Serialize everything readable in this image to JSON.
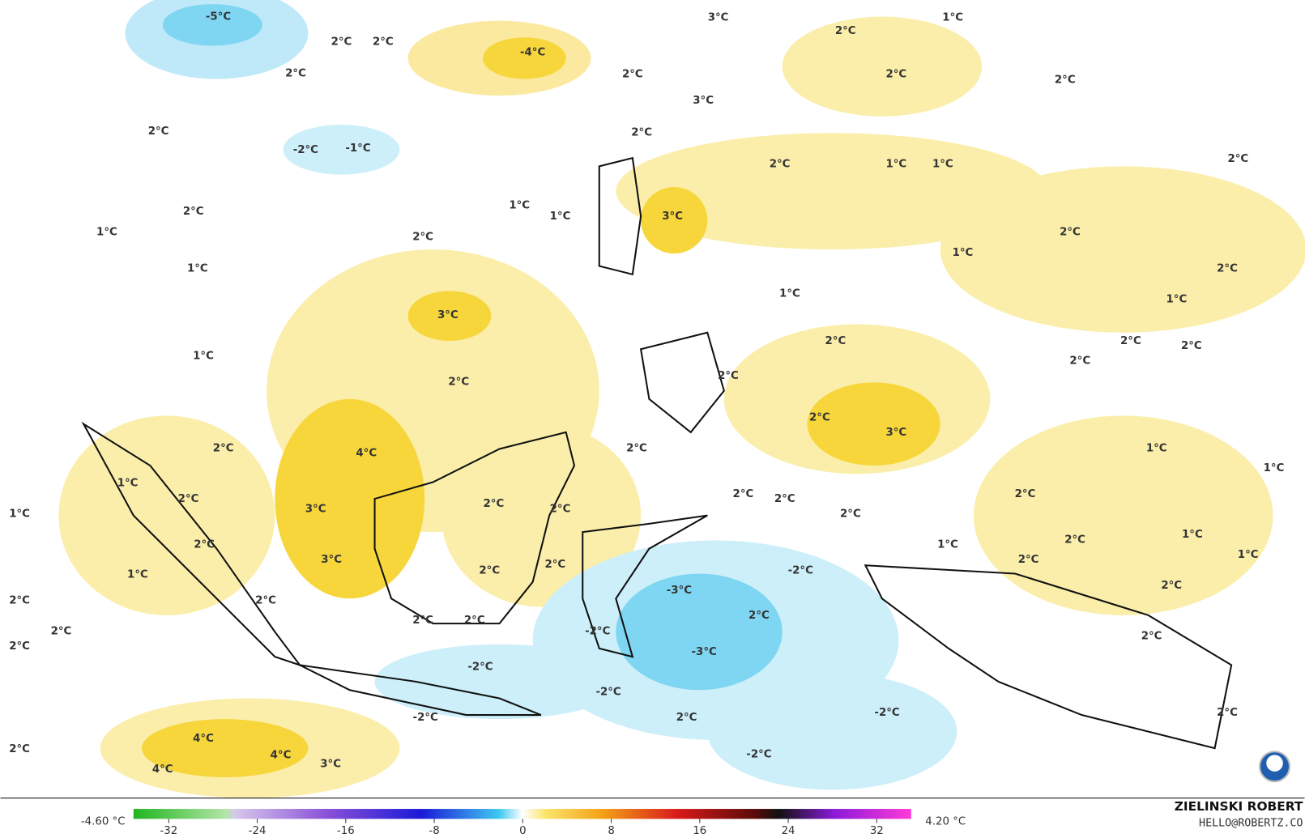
{
  "map": {
    "labels": [
      "-5°C",
      "2°C",
      "2°C",
      "2°C",
      "-4°C",
      "3°C",
      "2°C",
      "1°C",
      "2°C",
      "3°C",
      "2°C",
      "2°C",
      "2°C",
      "-2°C",
      "-1°C",
      "2°C",
      "2°C",
      "1°C",
      "1°C",
      "2°C",
      "2°C",
      "1°C",
      "1°C",
      "3°C",
      "1°C",
      "2°C",
      "2°C",
      "1°C",
      "2°C",
      "1°C",
      "1°C",
      "1°C",
      "3°C",
      "2°C",
      "2°C",
      "2°C",
      "1°C",
      "2°C",
      "2°C",
      "2°C",
      "2°C",
      "3°C",
      "2°C",
      "4°C",
      "2°C",
      "1°C",
      "1°C",
      "1°C",
      "2°C",
      "2°C",
      "2°C",
      "2°C",
      "2°C",
      "3°C",
      "2°C",
      "1°C",
      "2°C",
      "1°C",
      "2°C",
      "2°C",
      "1°C",
      "1°C",
      "3°C",
      "2°C",
      "2°C",
      "-2°C",
      "2°C",
      "1°C",
      "-3°C",
      "2°C",
      "2°C",
      "2°C",
      "2°C",
      "2°C",
      "2°C",
      "-2°C",
      "2°C",
      "2°C",
      "2°C",
      "-3°C",
      "-2°C",
      "-2°C",
      "-2°C",
      "2°C",
      "-2°C",
      "2°C",
      "4°C",
      "2°C",
      "4°C",
      "-2°C",
      "3°C",
      "4°C"
    ]
  },
  "colorbar": {
    "min_label": "-4.60 °C",
    "max_label": "4.20 °C",
    "ticks": [
      -32,
      -24,
      -16,
      -8,
      0,
      8,
      16,
      24,
      32
    ]
  },
  "credit": {
    "name": "ZIELINSKI ROBERT",
    "email": "HELLO@ROBERTZ.CO"
  }
}
